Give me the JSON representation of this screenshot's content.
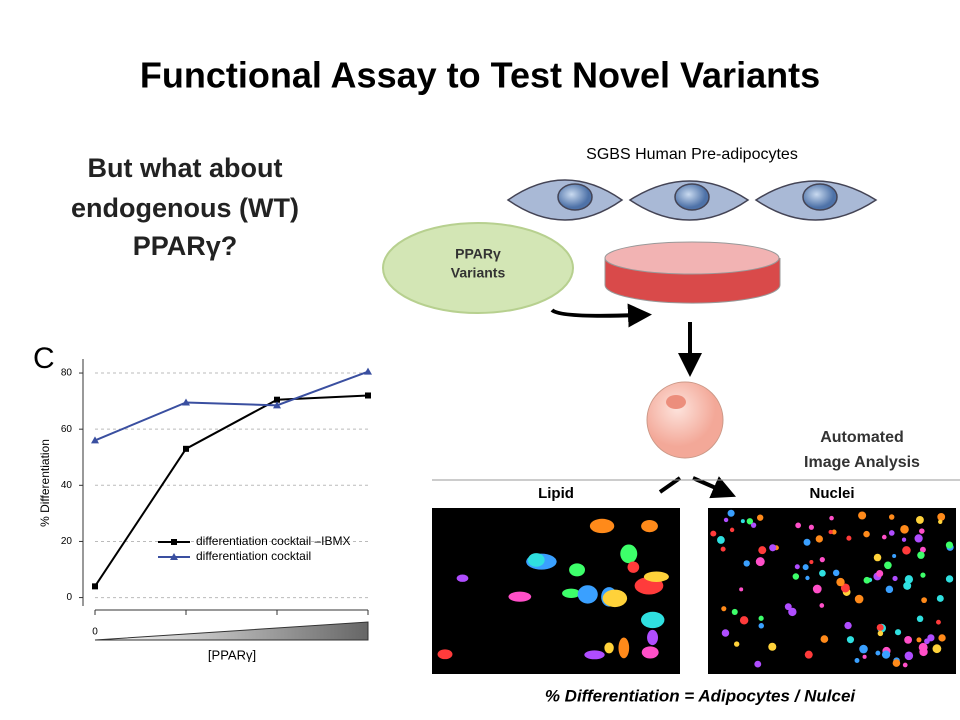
{
  "title": "Functional Assay to Test Novel Variants",
  "question": [
    "But what about",
    "endogenous (WT)",
    "PPARγ?"
  ],
  "diagram": {
    "cells_label": "SGBS Human Pre-adipocytes",
    "variants_label": [
      "PPARγ",
      "Variants"
    ],
    "analysis_label": [
      "Automated",
      "Image Analysis"
    ],
    "lipid_label": "Lipid",
    "nuclei_label": "Nuclei",
    "formula": "% Differentiation = Adipocytes / Nulcei"
  },
  "chart_data": {
    "type": "line",
    "panel_label": "C",
    "x_label": "[PPARγ]",
    "y_label": "% Differentiation",
    "categories": [
      "0",
      null,
      null,
      null
    ],
    "series": [
      {
        "name": "differentiation cocktail –IBMX",
        "color": "#000000",
        "marker": "square",
        "values": [
          4,
          53,
          70.5,
          72
        ]
      },
      {
        "name": "differentiation cocktail",
        "color": "#3a4fa0",
        "marker": "triangle",
        "values": [
          56,
          69.5,
          68.5,
          80.5
        ]
      }
    ],
    "ylim": [
      -3,
      85
    ],
    "yticks": [
      0,
      20,
      40,
      60,
      80
    ],
    "grid": true
  }
}
